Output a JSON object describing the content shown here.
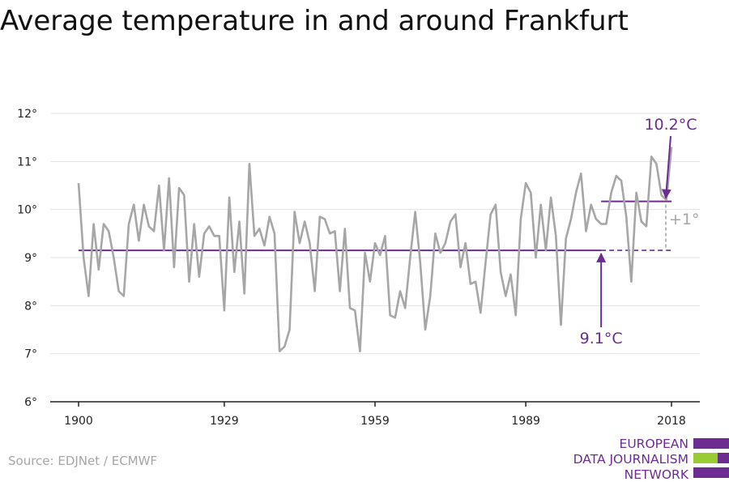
{
  "title": "Average temperature in and around Frankfurt",
  "source": "Source: EDJNet / ECMWF",
  "logo": {
    "lines": [
      "EUROPEAN",
      "DATA JOURNALISM",
      "NETWORK"
    ]
  },
  "colors": {
    "series": "#a6a6a6",
    "accent": "#6c2c91",
    "logo_green": "#99cc33",
    "axis": "#222222",
    "grid": "#e3e3e3"
  },
  "chart_data": {
    "type": "line",
    "title": "Average temperature in and around Frankfurt",
    "xlabel": "",
    "ylabel": "",
    "xlim": [
      1900,
      2018
    ],
    "ylim": [
      6,
      12
    ],
    "grid": true,
    "x_ticks": [
      1900,
      1929,
      1959,
      1989,
      2018
    ],
    "y_ticks": [
      {
        "value": 6,
        "label": "6°"
      },
      {
        "value": 7,
        "label": "7°"
      },
      {
        "value": 8,
        "label": "8°"
      },
      {
        "value": 9,
        "label": "9°"
      },
      {
        "value": 10,
        "label": "10°"
      },
      {
        "value": 11,
        "label": "11°"
      },
      {
        "value": 12,
        "label": "12°"
      }
    ],
    "series": [
      {
        "x": [
          1900,
          1901,
          1902,
          1903,
          1904,
          1905,
          1906,
          1907,
          1908,
          1909,
          1910,
          1911,
          1912,
          1913,
          1914,
          1915,
          1916,
          1917,
          1918,
          1919,
          1920,
          1921,
          1922,
          1923,
          1924,
          1925,
          1926,
          1927,
          1928,
          1929,
          1930,
          1931,
          1932,
          1933,
          1934,
          1935,
          1936,
          1937,
          1938,
          1939,
          1940,
          1941,
          1942,
          1943,
          1944,
          1945,
          1946,
          1947,
          1948,
          1949,
          1950,
          1951,
          1952,
          1953,
          1954,
          1955,
          1956,
          1957,
          1958,
          1959,
          1960,
          1961,
          1962,
          1963,
          1964,
          1965,
          1966,
          1967,
          1968,
          1969,
          1970,
          1971,
          1972,
          1973,
          1974,
          1975,
          1976,
          1977,
          1978,
          1979,
          1980,
          1981,
          1982,
          1983,
          1984,
          1985,
          1986,
          1987,
          1988,
          1989,
          1990,
          1991,
          1992,
          1993,
          1994,
          1995,
          1996,
          1997,
          1998,
          1999,
          2000,
          2001,
          2002,
          2003,
          2004,
          2005,
          2006,
          2007,
          2008,
          2009,
          2010,
          2011,
          2012,
          2013,
          2014,
          2015,
          2016,
          2017,
          2018
        ],
        "values": [
          10.55,
          9.0,
          8.2,
          9.7,
          8.75,
          9.7,
          9.55,
          9.0,
          8.3,
          8.2,
          9.7,
          10.1,
          9.35,
          10.1,
          9.65,
          9.55,
          10.5,
          9.15,
          10.65,
          8.8,
          10.45,
          10.3,
          8.5,
          9.7,
          8.6,
          9.5,
          9.65,
          9.45,
          9.45,
          7.9,
          10.25,
          8.7,
          9.75,
          8.25,
          10.95,
          9.45,
          9.6,
          9.25,
          9.85,
          9.5,
          7.05,
          7.15,
          7.5,
          9.95,
          9.3,
          9.75,
          9.3,
          8.3,
          9.85,
          9.8,
          9.5,
          9.55,
          8.3,
          9.6,
          7.95,
          7.9,
          7.05,
          9.1,
          8.5,
          9.3,
          9.05,
          9.45,
          7.8,
          7.75,
          8.3,
          7.95,
          9.0,
          9.95,
          8.9,
          7.5,
          8.2,
          9.5,
          9.1,
          9.3,
          9.75,
          9.9,
          8.8,
          9.3,
          8.45,
          8.5,
          7.85,
          8.9,
          9.9,
          10.1,
          8.7,
          8.2,
          8.65,
          7.8,
          9.8,
          10.55,
          10.35,
          9.0,
          10.1,
          9.15,
          10.25,
          9.45,
          7.6,
          9.4,
          9.8,
          10.35,
          10.75,
          9.55,
          10.1,
          9.8,
          9.7,
          9.7,
          10.35,
          10.7,
          10.6,
          9.85,
          8.5,
          10.35,
          9.75,
          9.65,
          11.1,
          10.95,
          10.3,
          10.2,
          11.3
        ]
      }
    ],
    "reference_lines": [
      {
        "kind": "baseline",
        "value": 9.15,
        "x_from": 1900,
        "x_to": 2018,
        "solid_until": 2004,
        "style": "solid-then-dashed"
      },
      {
        "kind": "recent",
        "value": 10.17,
        "x_from": 2004,
        "x_to": 2018
      }
    ],
    "annotations": [
      {
        "text": "10.2°C",
        "point_x": 2018,
        "point_y": 10.2,
        "color": "#6c2c91"
      },
      {
        "text": "9.1°C",
        "point_x": 2004,
        "point_y": 9.15,
        "color": "#6c2c91"
      },
      {
        "text": "+1°",
        "color": "#a6a6a6"
      }
    ]
  }
}
